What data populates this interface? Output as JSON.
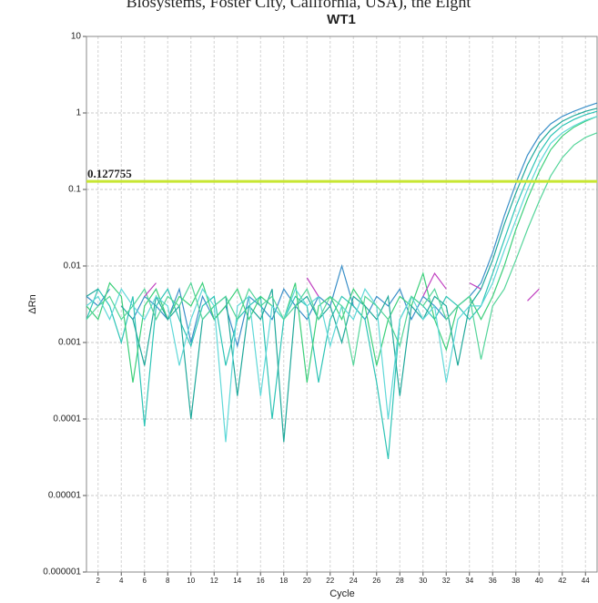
{
  "caption_fragment": "Biosystems, Foster City, California, USA), the Eight",
  "chart_data": {
    "type": "line",
    "title": "WT1",
    "xlabel": "Cycle",
    "ylabel": "ΔRn",
    "log_y": true,
    "grid": true,
    "x": [
      1,
      2,
      3,
      4,
      5,
      6,
      7,
      8,
      9,
      10,
      11,
      12,
      13,
      14,
      15,
      16,
      17,
      18,
      19,
      20,
      21,
      22,
      23,
      24,
      25,
      26,
      27,
      28,
      29,
      30,
      31,
      32,
      33,
      34,
      35,
      36,
      37,
      38,
      39,
      40,
      41,
      42,
      43,
      44,
      45
    ],
    "xlim": [
      1,
      45
    ],
    "xticks": [
      2,
      4,
      6,
      8,
      10,
      12,
      14,
      16,
      18,
      20,
      22,
      24,
      26,
      28,
      30,
      32,
      34,
      36,
      38,
      40,
      42,
      44
    ],
    "ylim": [
      1e-06,
      10
    ],
    "yticks": [
      10,
      1,
      0.1,
      0.01,
      0.001,
      0.0001,
      1e-05,
      1e-06
    ],
    "threshold": 0.127755,
    "threshold_color": "#c8e632",
    "threshold_label_color": "#8b1a1a",
    "series": [
      {
        "color": "#3a8fc8",
        "values": [
          0.004,
          0.003,
          0.005,
          null,
          0.002,
          0.004,
          0.003,
          0.002,
          0.005,
          0.001,
          0.004,
          0.002,
          0.003,
          0.0009,
          0.004,
          0.003,
          0.002,
          0.005,
          0.003,
          0.002,
          0.004,
          0.003,
          0.01,
          0.003,
          0.002,
          0.004,
          0.003,
          0.005,
          0.002,
          0.004,
          0.003,
          0.002,
          0.003,
          0.004,
          0.006,
          0.015,
          0.045,
          0.12,
          0.28,
          0.5,
          0.72,
          0.9,
          1.05,
          1.2,
          1.35
        ]
      },
      {
        "color": "#2ec4b6",
        "values": [
          0.002,
          0.005,
          0.003,
          0.001,
          0.004,
          8e-05,
          0.003,
          0.005,
          0.002,
          0.0009,
          0.003,
          0.004,
          0.0005,
          0.002,
          0.003,
          0.004,
          0.0001,
          0.002,
          0.004,
          0.003,
          0.0003,
          0.002,
          0.004,
          0.003,
          0.002,
          0.0003,
          3e-05,
          0.002,
          0.004,
          0.003,
          0.002,
          0.004,
          0.003,
          0.002,
          0.003,
          0.008,
          0.022,
          0.06,
          0.14,
          0.3,
          0.5,
          0.68,
          0.82,
          0.95,
          1.05
        ]
      },
      {
        "color": "#3ccf7a",
        "values": [
          0.003,
          0.002,
          0.006,
          0.004,
          0.0003,
          0.003,
          0.005,
          0.002,
          0.004,
          0.003,
          0.006,
          0.002,
          0.003,
          0.005,
          0.002,
          0.004,
          0.003,
          0.002,
          0.006,
          0.0003,
          0.003,
          0.004,
          0.002,
          0.005,
          0.003,
          0.0005,
          0.002,
          0.004,
          0.003,
          0.008,
          0.002,
          0.0008,
          0.003,
          0.004,
          0.002,
          0.004,
          0.01,
          0.03,
          0.075,
          0.17,
          0.33,
          0.5,
          0.65,
          0.78,
          0.9
        ]
      },
      {
        "color": "#1fa89a",
        "values": [
          0.004,
          0.005,
          null,
          0.003,
          0.002,
          0.0005,
          0.004,
          0.002,
          0.003,
          0.0001,
          0.002,
          0.003,
          0.004,
          0.0002,
          0.003,
          0.002,
          0.005,
          5e-05,
          0.003,
          0.004,
          0.002,
          0.003,
          0.001,
          0.004,
          0.003,
          0.002,
          0.004,
          0.0002,
          0.003,
          0.002,
          0.004,
          0.003,
          0.0005,
          0.003,
          0.005,
          0.012,
          0.035,
          0.09,
          0.21,
          0.4,
          0.6,
          0.78,
          0.92,
          1.05,
          1.15
        ]
      },
      {
        "color": "#5fd8d8",
        "values": [
          0.003,
          0.004,
          0.002,
          0.005,
          0.003,
          0.002,
          0.004,
          0.003,
          0.0005,
          0.002,
          0.005,
          0.003,
          5e-05,
          0.003,
          0.004,
          0.0002,
          0.003,
          0.002,
          0.005,
          0.003,
          0.004,
          0.0009,
          0.003,
          0.002,
          0.005,
          0.003,
          0.0001,
          0.002,
          0.004,
          0.002,
          0.003,
          0.0003,
          0.002,
          0.003,
          0.003,
          0.006,
          0.016,
          0.04,
          0.1,
          0.22,
          0.4,
          0.55,
          0.68,
          0.8,
          0.9
        ]
      },
      {
        "color": "#55d59a",
        "values": [
          0.002,
          0.003,
          0.004,
          0.002,
          0.003,
          0.005,
          0.002,
          0.004,
          0.003,
          0.006,
          0.002,
          0.003,
          0.004,
          0.002,
          0.005,
          0.003,
          0.004,
          0.002,
          0.003,
          0.005,
          0.002,
          0.004,
          0.003,
          0.0005,
          0.004,
          0.003,
          0.002,
          0.0009,
          0.004,
          0.003,
          0.005,
          0.002,
          0.003,
          0.004,
          0.0006,
          0.003,
          0.005,
          0.012,
          0.03,
          0.07,
          0.15,
          0.26,
          0.38,
          0.48,
          0.55
        ]
      },
      {
        "color": "#c040c0",
        "values": [
          null,
          null,
          null,
          null,
          null,
          0.004,
          0.006,
          null,
          null,
          null,
          null,
          null,
          null,
          null,
          null,
          null,
          null,
          null,
          null,
          0.007,
          0.004,
          null,
          null,
          null,
          null,
          null,
          null,
          null,
          null,
          0.004,
          0.008,
          0.005,
          null,
          0.006,
          0.005,
          null,
          null,
          null,
          0.0035,
          0.005,
          null,
          null,
          null,
          null,
          null
        ]
      }
    ]
  }
}
